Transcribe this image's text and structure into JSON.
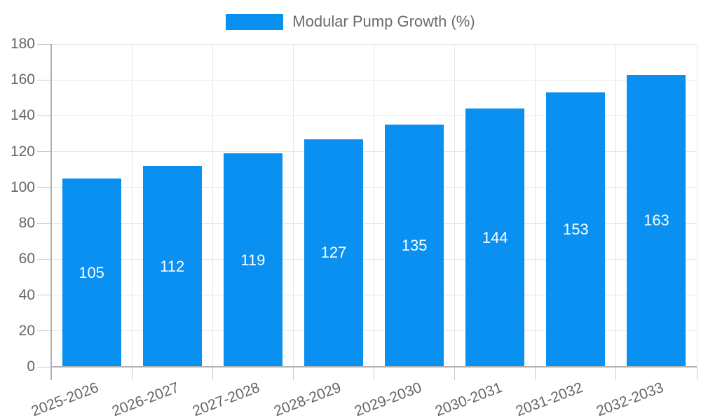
{
  "chart_data": {
    "type": "bar",
    "title": "",
    "xlabel": "",
    "ylabel": "",
    "categories": [
      "2025-2026",
      "2026-2027",
      "2027-2028",
      "2028-2029",
      "2029-2030",
      "2030-2031",
      "2031-2032",
      "2032-2033"
    ],
    "series": [
      {
        "name": "Modular Pump Growth (%)",
        "values": [
          105,
          112,
          119,
          127,
          135,
          144,
          153,
          163
        ]
      }
    ],
    "value_labels": "inside-center",
    "ylim": [
      0,
      180
    ],
    "yticks": [
      0,
      20,
      40,
      60,
      80,
      100,
      120,
      140,
      160,
      180
    ],
    "grid": true,
    "legend_position": "top-center",
    "colors": {
      "bar": "#0990F0",
      "grid_line": "#e6e6e6",
      "axis_line": "#b0b0b0",
      "tick_mark": "#c9c9c9",
      "tick_text": "#666666",
      "legend_text": "#6b6b6b",
      "value_text": "#ffffff",
      "background": "#ffffff"
    }
  }
}
